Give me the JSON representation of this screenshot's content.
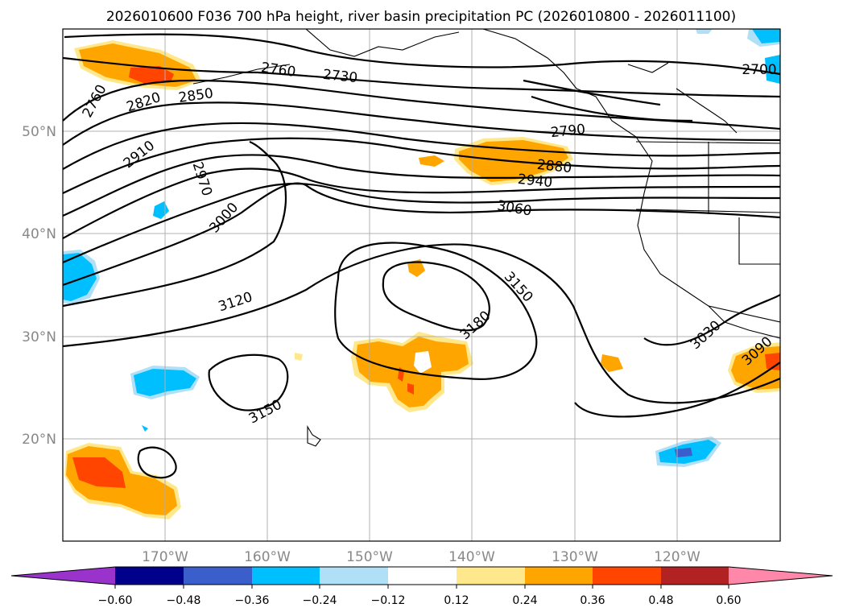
{
  "title": "2026010600 F036 700 hPa height, river basin precipitation PC (2026010800 - 2026011100)",
  "lat_labels": [
    "50°N",
    "40°N",
    "30°N",
    "20°N"
  ],
  "lon_labels": [
    "170°W",
    "160°W",
    "150°W",
    "140°W",
    "130°W",
    "120°W"
  ],
  "contour_labels": [
    "2760",
    "2760",
    "2730",
    "2700",
    "2820",
    "2850",
    "2790",
    "2910",
    "2970",
    "2880",
    "2940",
    "3000",
    "3060",
    "3150",
    "3120",
    "3180",
    "3030",
    "3090",
    "3150"
  ],
  "colorbar": {
    "tick_labels": [
      "−0.60",
      "−0.48",
      "−0.36",
      "−0.24",
      "−0.12",
      "0.12",
      "0.24",
      "0.36",
      "0.48",
      "0.60"
    ],
    "colors": [
      "#9933cc",
      "#00008b",
      "#3a5fcd",
      "#00bfff",
      "#afe0f8",
      "#ffffff",
      "#ffe88c",
      "#ffa500",
      "#ff4500",
      "#b22222",
      "#ff88aa"
    ]
  },
  "chart_data": {
    "type": "map",
    "projection": "lat-lon",
    "lon_range": [
      "180°W",
      "110°W"
    ],
    "lat_range": [
      "10°N",
      "60°N"
    ],
    "contour_field": "700 hPa height",
    "contour_levels": [
      2700,
      2730,
      2760,
      2790,
      2820,
      2850,
      2880,
      2910,
      2940,
      2970,
      3000,
      3030,
      3060,
      3090,
      3120,
      3150,
      3180
    ],
    "shaded_field": "river basin precipitation PC",
    "shading_levels": [
      -0.6,
      -0.48,
      -0.36,
      -0.24,
      -0.12,
      0.12,
      0.24,
      0.36,
      0.48,
      0.6
    ]
  }
}
